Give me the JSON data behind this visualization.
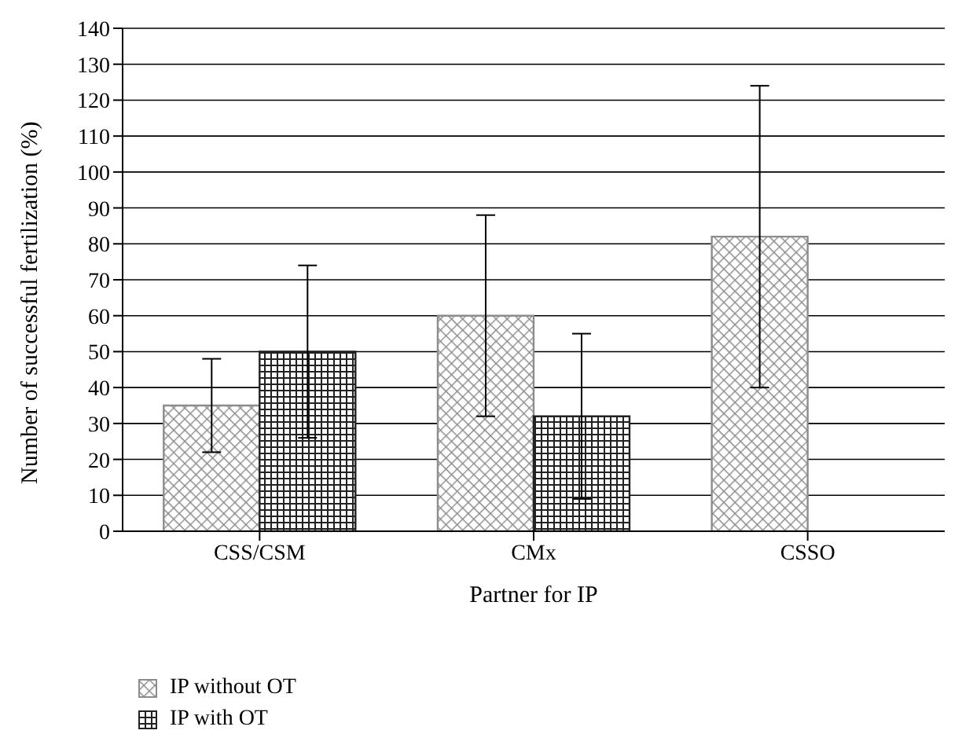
{
  "chart_data": {
    "type": "bar",
    "xlabel": "Partner for IP",
    "ylabel": "Number of successful fertilization (%)",
    "categories": [
      "CSS/CSM",
      "CMx",
      "CSSO"
    ],
    "series": [
      {
        "name": "IP without OT",
        "color": "#8c8c8c",
        "values": [
          35,
          60,
          82
        ],
        "errors": [
          13,
          28,
          42
        ]
      },
      {
        "name": "IP with OT",
        "color": "#222222",
        "values": [
          50,
          32,
          null
        ],
        "errors": [
          24,
          23,
          null
        ]
      }
    ],
    "ylim": [
      0,
      140
    ],
    "yticks": [
      0,
      10,
      20,
      30,
      40,
      50,
      60,
      70,
      80,
      90,
      100,
      110,
      120,
      130,
      140
    ],
    "grid": "y",
    "legend": "bottom left"
  }
}
